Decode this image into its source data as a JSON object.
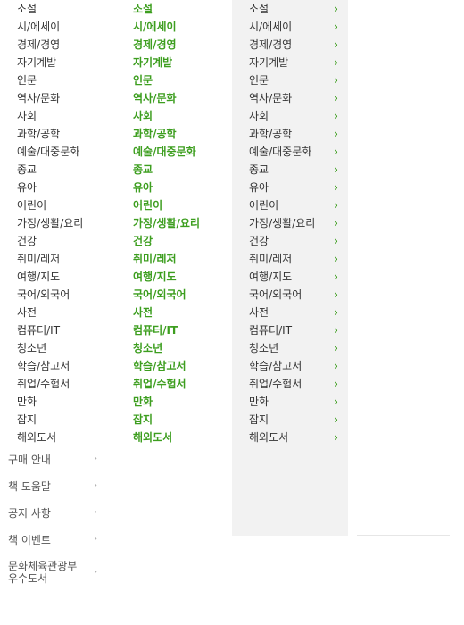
{
  "categories": [
    "소설",
    "시/에세이",
    "경제/경영",
    "자기계발",
    "인문",
    "역사/문화",
    "사회",
    "과학/공학",
    "예술/대중문화",
    "종교",
    "유아",
    "어린이",
    "가정/생활/요리",
    "건강",
    "취미/레저",
    "여행/지도",
    "국어/외국어",
    "사전",
    "컴퓨터/IT",
    "청소년",
    "학습/참고서",
    "취업/수험서",
    "만화",
    "잡지",
    "해외도서"
  ],
  "guide_links": [
    "구매 안내",
    "책 도움말",
    "공지 사항",
    "책 이벤트"
  ],
  "culture_link": {
    "line1": "문화체육관광부",
    "line2": "우수도서"
  },
  "chevron": "›",
  "small_chevron": "›",
  "colors": {
    "accent": "#3d9e1f",
    "panel": "#f2f2f2",
    "text": "#333333"
  },
  "icons": {
    "chevron": "chevron-right-icon"
  }
}
